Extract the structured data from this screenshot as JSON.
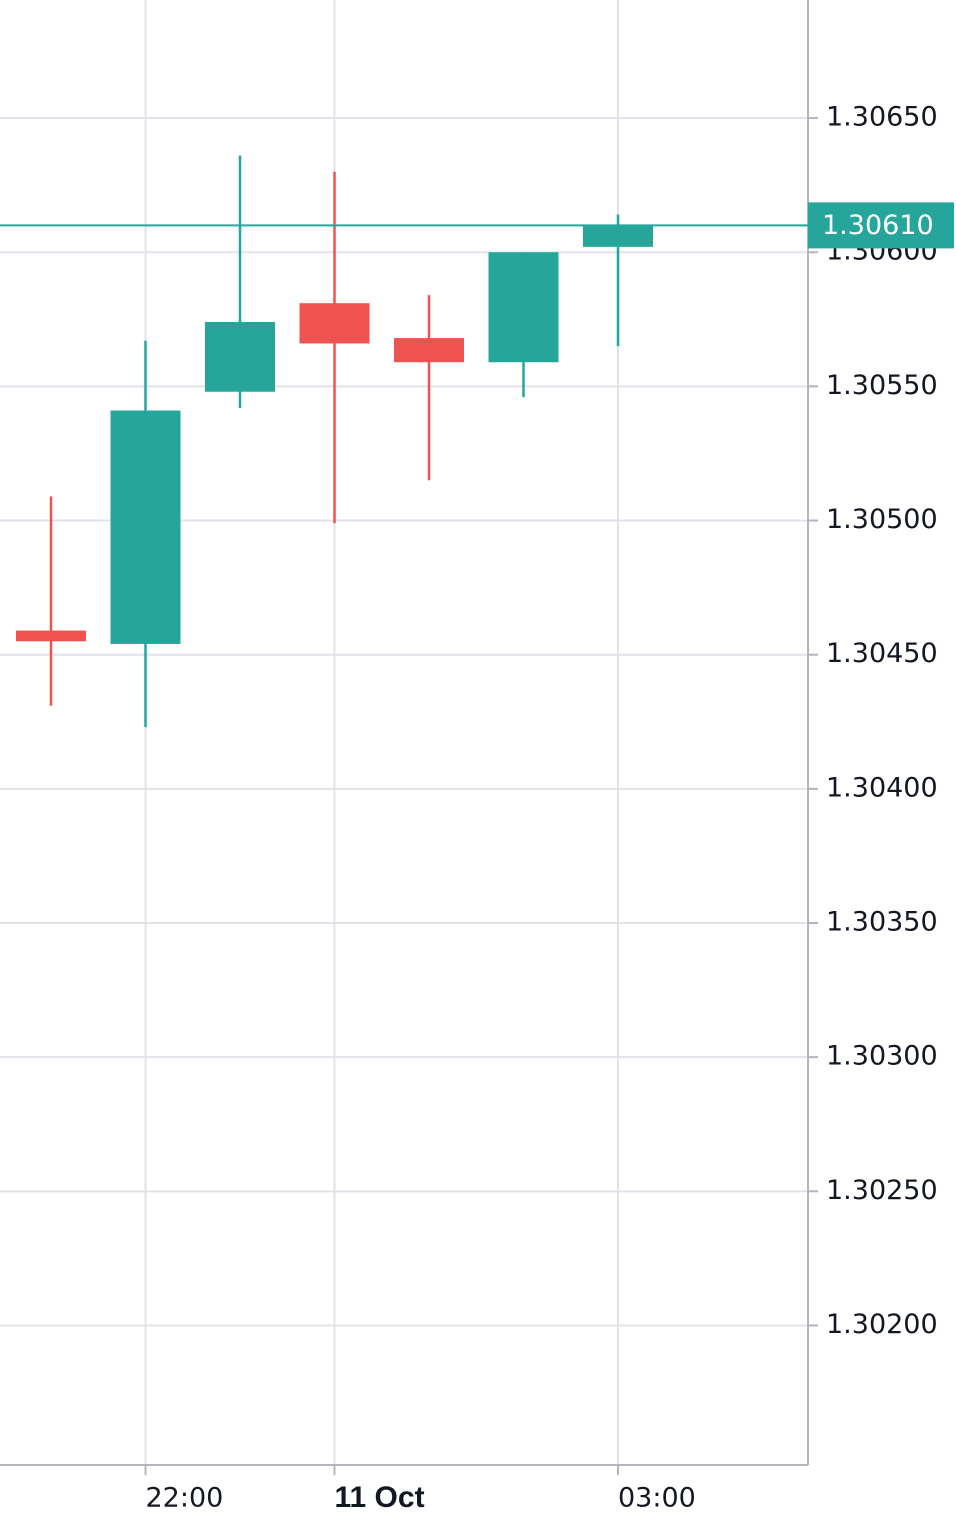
{
  "chart_data": {
    "type": "candlestick",
    "categories": [
      null,
      "22:00",
      null,
      "11 Oct",
      null,
      null,
      "03:00"
    ],
    "open": [
      1.30459,
      1.30454,
      1.30548,
      1.30581,
      1.30568,
      1.30559,
      1.30602
    ],
    "high": [
      1.30509,
      1.30567,
      1.30636,
      1.3063,
      1.30584,
      1.306,
      1.30614
    ],
    "low": [
      1.30431,
      1.30423,
      1.30542,
      1.30499,
      1.30515,
      1.30546,
      1.30565
    ],
    "close": [
      1.30455,
      1.30541,
      1.30574,
      1.30566,
      1.30559,
      1.306,
      1.3061
    ],
    "up_color": "#26a69a",
    "down_color": "#ef5350",
    "ylim": [
      1.30148,
      1.30694
    ],
    "yticks": [
      {
        "value": 1.302,
        "label": "1.30200"
      },
      {
        "value": 1.3025,
        "label": "1.30250"
      },
      {
        "value": 1.303,
        "label": "1.30300"
      },
      {
        "value": 1.3035,
        "label": "1.30350"
      },
      {
        "value": 1.304,
        "label": "1.30400"
      },
      {
        "value": 1.3045,
        "label": "1.30450"
      },
      {
        "value": 1.305,
        "label": "1.30500"
      },
      {
        "value": 1.3055,
        "label": "1.30550"
      },
      {
        "value": 1.306,
        "label": "1.30600"
      },
      {
        "value": 1.3065,
        "label": "1.30650"
      }
    ],
    "last_price": {
      "value": 1.3061,
      "label": "1.30610"
    },
    "grid": true
  }
}
